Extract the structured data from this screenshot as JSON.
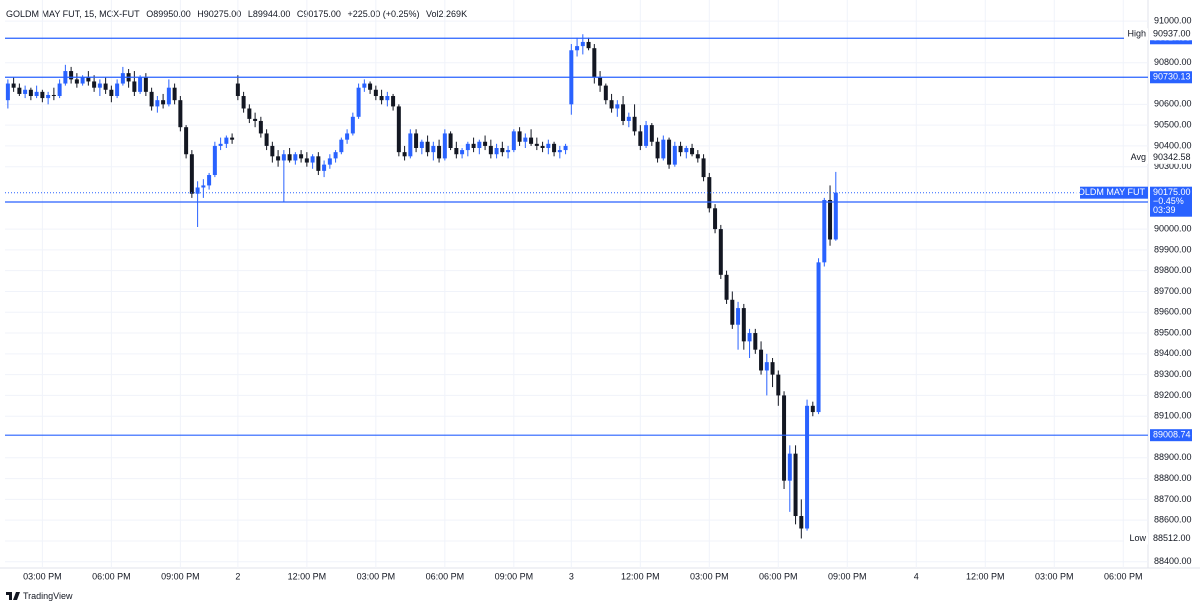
{
  "header": {
    "symbol": "GOLDM MAY FUT, 15, MCX-FUT",
    "open": "O89950.00",
    "high": "H90275.00",
    "low": "L89944.00",
    "close": "C90175.00",
    "change": "+225.00 (+0.25%)",
    "volume": "Vol2.269K"
  },
  "footer": {
    "brand": "TradingView"
  },
  "chart_data": {
    "type": "candlestick",
    "up_color": "#2962ff",
    "down_color": "#131722",
    "line_color": "#2962ff",
    "grid": true,
    "xlim": [
      -0.5,
      198.3
    ],
    "xticks": [
      {
        "value": 6,
        "label": "03:00 PM"
      },
      {
        "value": 18,
        "label": "06:00 PM"
      },
      {
        "value": 30,
        "label": "09:00 PM"
      },
      {
        "value": 40,
        "label": "2"
      },
      {
        "value": 52,
        "label": "12:00 PM"
      },
      {
        "value": 64,
        "label": "03:00 PM"
      },
      {
        "value": 76,
        "label": "06:00 PM"
      },
      {
        "value": 88,
        "label": "09:00 PM"
      },
      {
        "value": 98,
        "label": "3"
      },
      {
        "value": 110,
        "label": "12:00 PM"
      },
      {
        "value": 122,
        "label": "03:00 PM"
      },
      {
        "value": 134,
        "label": "06:00 PM"
      },
      {
        "value": 146,
        "label": "09:00 PM"
      },
      {
        "value": 158,
        "label": "4"
      },
      {
        "value": 170,
        "label": "12:00 PM"
      },
      {
        "value": 182,
        "label": "03:00 PM"
      },
      {
        "value": 194,
        "label": "06:00 PM"
      }
    ],
    "ylim": [
      88370,
      91020
    ],
    "yticks": [
      {
        "value": 88400,
        "label": "88400.00"
      },
      {
        "value": 88500,
        "label": "88500.00"
      },
      {
        "value": 88600,
        "label": "88600.00"
      },
      {
        "value": 88700,
        "label": "88700.00"
      },
      {
        "value": 88800,
        "label": "88800.00"
      },
      {
        "value": 88900,
        "label": "88900.00"
      },
      {
        "value": 89100,
        "label": "89100.00"
      },
      {
        "value": 89200,
        "label": "89200.00"
      },
      {
        "value": 89300,
        "label": "89300.00"
      },
      {
        "value": 89400,
        "label": "89400.00"
      },
      {
        "value": 89500,
        "label": "89500.00"
      },
      {
        "value": 89600,
        "label": "89600.00"
      },
      {
        "value": 89700,
        "label": "89700.00"
      },
      {
        "value": 89800,
        "label": "89800.00"
      },
      {
        "value": 89900,
        "label": "89900.00"
      },
      {
        "value": 90000,
        "label": "90000.00"
      },
      {
        "value": 90300,
        "label": "90300.00"
      },
      {
        "value": 90400,
        "label": "90400.00"
      },
      {
        "value": 90500,
        "label": "90500.00"
      },
      {
        "value": 90600,
        "label": "90600.00"
      },
      {
        "value": 90800,
        "label": "90800.00"
      },
      {
        "value": 91000,
        "label": "91000.00"
      }
    ],
    "price_lines": [
      90917.63,
      90730.13,
      90130.16,
      89008.74
    ],
    "markers": [
      {
        "name": "High",
        "value": 90937,
        "label": "90937.00"
      },
      {
        "name": "Avg",
        "value": 90342.58,
        "label": "90342.58"
      },
      {
        "name": "Low",
        "value": 88512,
        "label": "88512.00"
      }
    ],
    "current": {
      "name": "GOLDM MAY FUT",
      "value": 90175,
      "label": "90175.00",
      "change": "−0.45%",
      "countdown": "03:39"
    },
    "ohlc": [
      [
        90620,
        90720,
        90580,
        90700
      ],
      [
        90700,
        90730,
        90660,
        90680
      ],
      [
        90680,
        90700,
        90640,
        90650
      ],
      [
        90650,
        90690,
        90630,
        90670
      ],
      [
        90670,
        90680,
        90620,
        90640
      ],
      [
        90640,
        90690,
        90630,
        90660
      ],
      [
        90660,
        90670,
        90610,
        90630
      ],
      [
        90630,
        90660,
        90600,
        90645
      ],
      [
        90645,
        90680,
        90620,
        90640
      ],
      [
        90640,
        90720,
        90630,
        90700
      ],
      [
        90700,
        90790,
        90690,
        90760
      ],
      [
        90760,
        90780,
        90700,
        90720
      ],
      [
        90720,
        90750,
        90680,
        90700
      ],
      [
        90700,
        90740,
        90690,
        90730
      ],
      [
        90730,
        90760,
        90690,
        90710
      ],
      [
        90710,
        90740,
        90660,
        90680
      ],
      [
        90680,
        90720,
        90640,
        90700
      ],
      [
        90700,
        90730,
        90650,
        90670
      ],
      [
        90670,
        90690,
        90610,
        90640
      ],
      [
        90640,
        90720,
        90630,
        90700
      ],
      [
        90700,
        90780,
        90690,
        90750
      ],
      [
        90750,
        90770,
        90680,
        90710
      ],
      [
        90710,
        90760,
        90640,
        90660
      ],
      [
        90660,
        90740,
        90650,
        90730
      ],
      [
        90730,
        90750,
        90640,
        90660
      ],
      [
        90660,
        90680,
        90570,
        90590
      ],
      [
        90590,
        90640,
        90560,
        90620
      ],
      [
        90620,
        90650,
        90580,
        90600
      ],
      [
        90600,
        90720,
        90590,
        90680
      ],
      [
        90680,
        90700,
        90600,
        90620
      ],
      [
        90620,
        90640,
        90470,
        90490
      ],
      [
        90490,
        90500,
        90340,
        90360
      ],
      [
        90360,
        90380,
        90150,
        90170
      ],
      [
        90170,
        90230,
        90010,
        90200
      ],
      [
        90200,
        90240,
        90150,
        90210
      ],
      [
        90210,
        90270,
        90190,
        90260
      ],
      [
        90260,
        90420,
        90250,
        90400
      ],
      [
        90400,
        90440,
        90380,
        90410
      ],
      [
        90410,
        90450,
        90390,
        90440
      ],
      [
        90440,
        90460,
        90410,
        90430
      ],
      [
        90700,
        90740,
        90620,
        90640
      ],
      [
        90640,
        90660,
        90560,
        90580
      ],
      [
        90580,
        90600,
        90510,
        90530
      ],
      [
        90530,
        90560,
        90490,
        90520
      ],
      [
        90520,
        90540,
        90440,
        90460
      ],
      [
        90460,
        90480,
        90380,
        90400
      ],
      [
        90400,
        90420,
        90320,
        90350
      ],
      [
        90350,
        90380,
        90300,
        90330
      ],
      [
        90330,
        90380,
        90130,
        90360
      ],
      [
        90360,
        90390,
        90320,
        90330
      ],
      [
        90330,
        90370,
        90310,
        90360
      ],
      [
        90360,
        90380,
        90320,
        90340
      ],
      [
        90340,
        90370,
        90300,
        90320
      ],
      [
        90320,
        90360,
        90290,
        90350
      ],
      [
        90350,
        90370,
        90260,
        90280
      ],
      [
        90280,
        90330,
        90250,
        90310
      ],
      [
        90310,
        90360,
        90290,
        90340
      ],
      [
        90340,
        90380,
        90320,
        90370
      ],
      [
        90370,
        90440,
        90360,
        90430
      ],
      [
        90430,
        90480,
        90410,
        90460
      ],
      [
        90460,
        90560,
        90450,
        90540
      ],
      [
        90540,
        90700,
        90530,
        90680
      ],
      [
        90680,
        90720,
        90660,
        90700
      ],
      [
        90700,
        90710,
        90650,
        90670
      ],
      [
        90670,
        90690,
        90620,
        90640
      ],
      [
        90640,
        90670,
        90600,
        90620
      ],
      [
        90620,
        90660,
        90590,
        90640
      ],
      [
        90640,
        90650,
        90570,
        90590
      ],
      [
        90590,
        90600,
        90350,
        90370
      ],
      [
        90370,
        90400,
        90330,
        90350
      ],
      [
        90350,
        90480,
        90340,
        90460
      ],
      [
        90460,
        90480,
        90370,
        90390
      ],
      [
        90390,
        90430,
        90360,
        90420
      ],
      [
        90420,
        90450,
        90350,
        90370
      ],
      [
        90370,
        90420,
        90330,
        90400
      ],
      [
        90400,
        90430,
        90320,
        90340
      ],
      [
        90340,
        90480,
        90330,
        90460
      ],
      [
        90460,
        90470,
        90380,
        90390
      ],
      [
        90390,
        90420,
        90340,
        90360
      ],
      [
        90360,
        90390,
        90340,
        90380
      ],
      [
        90380,
        90420,
        90350,
        90410
      ],
      [
        90410,
        90440,
        90370,
        90390
      ],
      [
        90390,
        90430,
        90360,
        90420
      ],
      [
        90420,
        90450,
        90380,
        90400
      ],
      [
        90400,
        90430,
        90340,
        90360
      ],
      [
        90360,
        90410,
        90340,
        90390
      ],
      [
        90390,
        90420,
        90350,
        90370
      ],
      [
        90370,
        90400,
        90340,
        90380
      ],
      [
        90380,
        90480,
        90370,
        90470
      ],
      [
        90470,
        90490,
        90400,
        90420
      ],
      [
        90420,
        90460,
        90390,
        90440
      ],
      [
        90440,
        90480,
        90400,
        90410
      ],
      [
        90410,
        90440,
        90380,
        90400
      ],
      [
        90400,
        90420,
        90370,
        90390
      ],
      [
        90390,
        90430,
        90360,
        90410
      ],
      [
        90410,
        90420,
        90350,
        90370
      ],
      [
        90370,
        90400,
        90340,
        90380
      ],
      [
        90380,
        90410,
        90360,
        90400
      ],
      [
        90600,
        90890,
        90550,
        90860
      ],
      [
        90860,
        90920,
        90830,
        90880
      ],
      [
        90880,
        90937,
        90840,
        90900
      ],
      [
        90900,
        90920,
        90860,
        90870
      ],
      [
        90870,
        90890,
        90700,
        90730
      ],
      [
        90730,
        90760,
        90660,
        90690
      ],
      [
        90690,
        90700,
        90600,
        90620
      ],
      [
        90620,
        90650,
        90560,
        90580
      ],
      [
        90580,
        90620,
        90540,
        90600
      ],
      [
        90600,
        90640,
        90500,
        90520
      ],
      [
        90520,
        90560,
        90490,
        90540
      ],
      [
        90540,
        90600,
        90450,
        90470
      ],
      [
        90470,
        90500,
        90380,
        90400
      ],
      [
        90400,
        90520,
        90390,
        90500
      ],
      [
        90500,
        90510,
        90400,
        90420
      ],
      [
        90420,
        90440,
        90320,
        90340
      ],
      [
        90340,
        90450,
        90330,
        90430
      ],
      [
        90430,
        90440,
        90290,
        90310
      ],
      [
        90310,
        90420,
        90300,
        90400
      ],
      [
        90400,
        90420,
        90350,
        90370
      ],
      [
        90370,
        90400,
        90340,
        90390
      ],
      [
        90390,
        90410,
        90350,
        90360
      ],
      [
        90360,
        90380,
        90320,
        90340
      ],
      [
        90340,
        90360,
        90230,
        90250
      ],
      [
        90250,
        90270,
        90080,
        90100
      ],
      [
        90100,
        90120,
        89980,
        90000
      ],
      [
        90000,
        90020,
        89760,
        89780
      ],
      [
        89780,
        89800,
        89640,
        89660
      ],
      [
        89660,
        89700,
        89520,
        89540
      ],
      [
        89540,
        89650,
        89420,
        89620
      ],
      [
        89620,
        89640,
        89420,
        89460
      ],
      [
        89460,
        89520,
        89380,
        89500
      ],
      [
        89500,
        89520,
        89400,
        89420
      ],
      [
        89420,
        89460,
        89300,
        89320
      ],
      [
        89320,
        89400,
        89200,
        89360
      ],
      [
        89360,
        89380,
        89240,
        89300
      ],
      [
        89300,
        89320,
        89150,
        89200
      ],
      [
        89200,
        89220,
        88750,
        88790
      ],
      [
        88790,
        88960,
        88640,
        88920
      ],
      [
        88920,
        88960,
        88580,
        88620
      ],
      [
        88620,
        88700,
        88512,
        88560
      ],
      [
        88560,
        89180,
        88550,
        89150
      ],
      [
        89150,
        89170,
        89100,
        89120
      ],
      [
        89120,
        89860,
        89110,
        89840
      ],
      [
        89840,
        90150,
        89820,
        90140
      ],
      [
        90140,
        90210,
        89920,
        89950
      ],
      [
        89950,
        90275,
        89944,
        90175
      ]
    ]
  }
}
